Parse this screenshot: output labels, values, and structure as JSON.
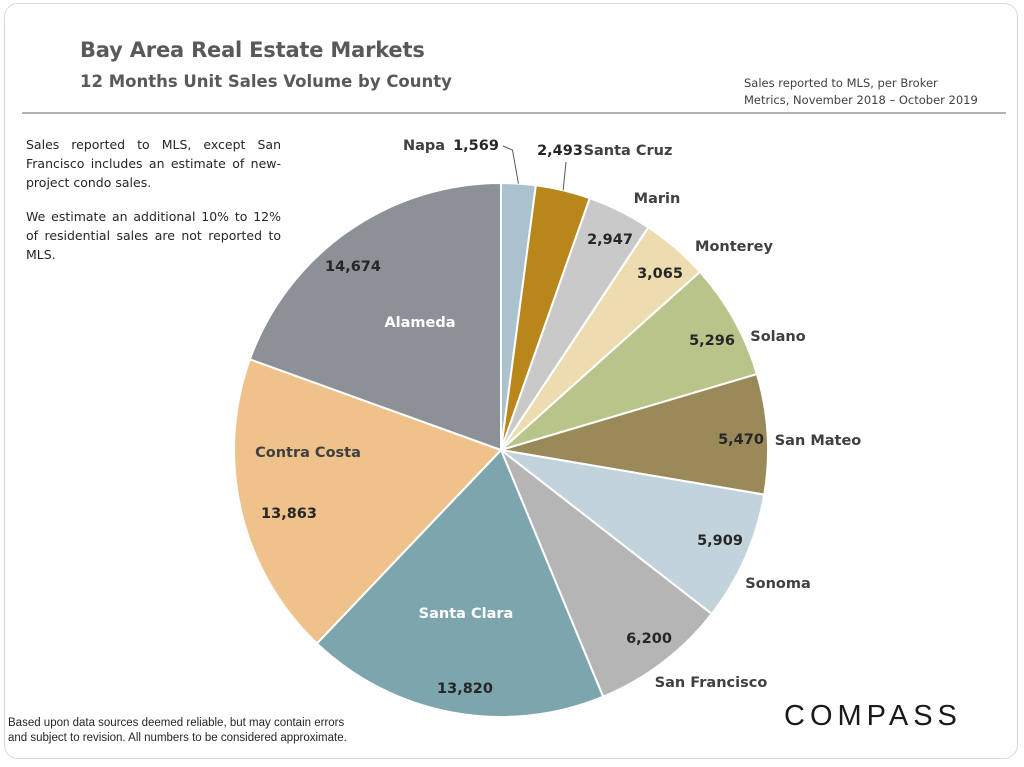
{
  "header": {
    "title": "Bay Area Real Estate Markets",
    "subtitle": "12 Months Unit Sales Volume by County",
    "source_line1": "Sales reported to MLS, per Broker",
    "source_line2": "Metrics, November 2018 – October 2019"
  },
  "notes": {
    "note1": "Sales reported to MLS, except San Francisco includes an estimate of new-project condo sales.",
    "note2": "We estimate an additional 10% to 12% of residential sales are not reported to MLS."
  },
  "footer": {
    "disclaimer_line1": "Based upon data sources deemed reliable, but may contain errors",
    "disclaimer_line2": "and  subject to revision. All numbers to be considered approximate.",
    "logo": "COMPASS"
  },
  "chart_data": {
    "type": "pie",
    "title": "12 Months Unit Sales Volume by County",
    "start_angle_deg": 0,
    "direction": "clockwise",
    "slices": [
      {
        "label": "Napa",
        "value": 1569,
        "value_label": "1,569",
        "color": "#a9c2ce"
      },
      {
        "label": "Santa Cruz",
        "value": 2493,
        "value_label": "2,493",
        "color": "#b8861b"
      },
      {
        "label": "Marin",
        "value": 2947,
        "value_label": "2,947",
        "color": "#c9c9c9"
      },
      {
        "label": "Monterey",
        "value": 3065,
        "value_label": "3,065",
        "color": "#ecdcb0"
      },
      {
        "label": "Solano",
        "value": 5296,
        "value_label": "5,296",
        "color": "#b9c48a"
      },
      {
        "label": "San Mateo",
        "value": 5470,
        "value_label": "5,470",
        "color": "#9a8a5a"
      },
      {
        "label": "Sonoma",
        "value": 5909,
        "value_label": "5,909",
        "color": "#c3d3db"
      },
      {
        "label": "San Francisco",
        "value": 6200,
        "value_label": "6,200",
        "color": "#b5b5b5"
      },
      {
        "label": "Santa Clara",
        "value": 13820,
        "value_label": "13,820",
        "color": "#7da5ad"
      },
      {
        "label": "Contra Costa",
        "value": 13863,
        "value_label": "13,863",
        "color": "#efc28b"
      },
      {
        "label": "Alameda",
        "value": 14674,
        "value_label": "14,674",
        "color": "#8c9197"
      }
    ]
  }
}
